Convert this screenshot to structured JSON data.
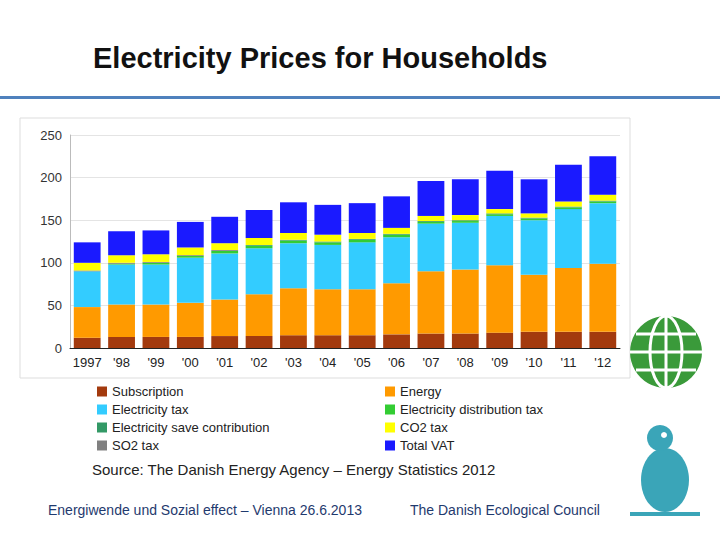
{
  "chart_data": {
    "type": "bar",
    "title": "Electricity Prices for Households",
    "annotations": [
      "Source: The Danish Energy Agency – Energy Statistics 2012",
      "Energiwende und Sozial effect – Vienna 26.6.2013",
      "The Danish Ecological Council"
    ],
    "categories": [
      "1997",
      "'98",
      "'99",
      "'00",
      "'01",
      "'02",
      "'03",
      "'04",
      "'05",
      "'06",
      "'07",
      "'08",
      "'09",
      "'10",
      "'11",
      "'12"
    ],
    "series": [
      {
        "name": "Subscription",
        "color": "#a33a0e",
        "values": [
          12,
          13,
          13,
          13,
          14,
          14,
          15,
          15,
          15,
          16,
          17,
          17,
          18,
          19,
          19,
          19
        ]
      },
      {
        "name": "Energy",
        "color": "#ff9a00",
        "values": [
          36,
          38,
          38,
          40,
          43,
          49,
          55,
          54,
          54,
          60,
          73,
          75,
          79,
          67,
          75,
          80
        ]
      },
      {
        "name": "Electricity tax",
        "color": "#33ccff",
        "values": [
          42,
          47,
          47,
          53,
          54,
          54,
          53,
          52,
          55,
          54,
          56,
          55,
          58,
          64,
          69,
          71
        ]
      },
      {
        "name": "Electricity distribution tax",
        "color": "#33cc33",
        "values": [
          0,
          1,
          2,
          2,
          3,
          3,
          3,
          3,
          3,
          3,
          2,
          2,
          2,
          2,
          2,
          2
        ]
      },
      {
        "name": "Electricity save contribution",
        "color": "#339966",
        "values": [
          0,
          0,
          0,
          0,
          0,
          1,
          1,
          1,
          1,
          1,
          1,
          1,
          1,
          1,
          1,
          1
        ]
      },
      {
        "name": "SO2 tax",
        "color": "#808080",
        "values": [
          1,
          1,
          1,
          1,
          1,
          0,
          0,
          0,
          0,
          0,
          0,
          0,
          0,
          0,
          0,
          0
        ]
      },
      {
        "name": "CO2 tax",
        "color": "#ffff00",
        "values": [
          9,
          9,
          9,
          9,
          8,
          8,
          8,
          8,
          7,
          7,
          6,
          6,
          5,
          5,
          6,
          7
        ]
      },
      {
        "name": "Total VAT",
        "color": "#1a1aff",
        "values": [
          24,
          28,
          28,
          30,
          31,
          33,
          36,
          35,
          35,
          37,
          41,
          42,
          45,
          40,
          43,
          45
        ]
      }
    ],
    "ylim": [
      0,
      250
    ],
    "yticks": [
      0,
      50,
      100,
      150,
      200,
      250
    ],
    "stacked": true,
    "grid": true,
    "legend": "bottom"
  }
}
